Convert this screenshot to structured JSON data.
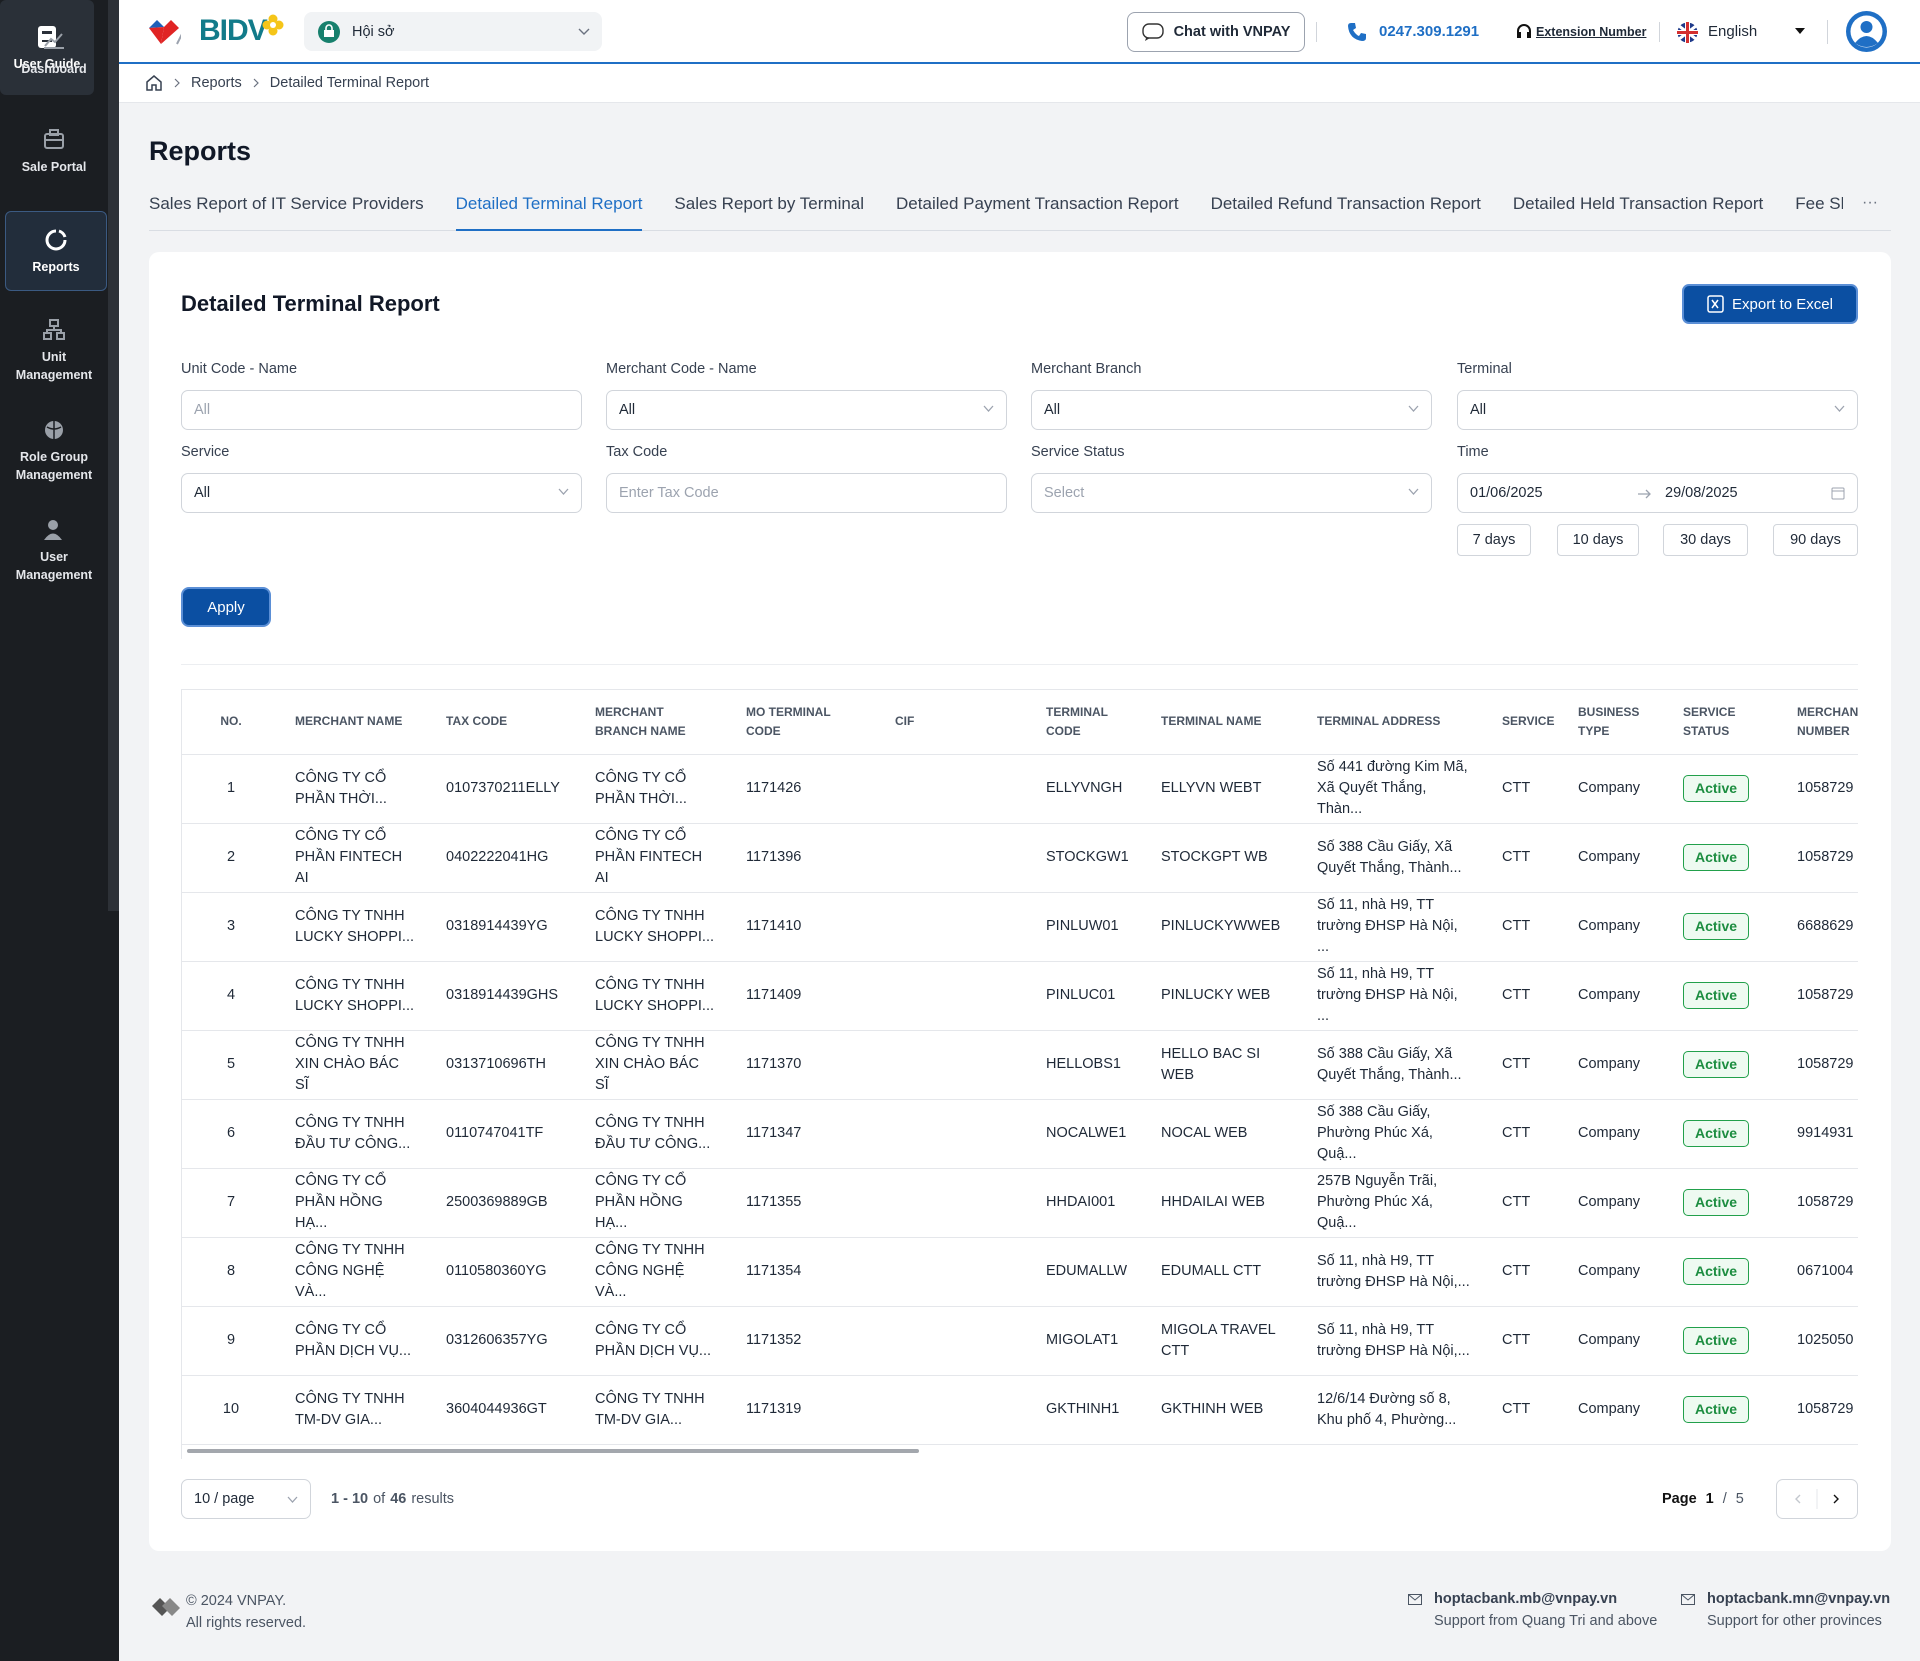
{
  "sidebar": {
    "items": [
      "Dashboard",
      "Sale Portal",
      "Reports",
      "Unit Management",
      "Role Group Management",
      "User Management"
    ],
    "active": 2,
    "user_guide": "User Guide"
  },
  "header": {
    "logo": "BIDV",
    "unit": "Hội sở",
    "chat": "Chat with VNPAY",
    "phone": "0247.309.1291",
    "extension": "Extension Number",
    "language": "English"
  },
  "breadcrumb": [
    "Reports",
    "Detailed Terminal Report"
  ],
  "page_title": "Reports",
  "tabs": {
    "items": [
      "Sales Report of IT Service Providers",
      "Detailed Terminal Report",
      "Sales Report by Terminal",
      "Detailed Payment Transaction Report",
      "Detailed Refund Transaction Report",
      "Detailed Held Transaction Report",
      "Fee Sha"
    ],
    "active": 1,
    "more": "···"
  },
  "card": {
    "title": "Detailed Terminal Report",
    "export": "Export to Excel",
    "filters": [
      {
        "label": "Unit Code - Name",
        "placeholder": "All",
        "select": false
      },
      {
        "label": "Merchant Code - Name",
        "value": "All",
        "select": true
      },
      {
        "label": "Merchant Branch",
        "value": "All",
        "select": true
      },
      {
        "label": "Terminal",
        "value": "All",
        "select": true
      },
      {
        "label": "Service",
        "value": "All",
        "select": true
      },
      {
        "label": "Tax Code",
        "placeholder": "Enter Tax Code",
        "select": false
      },
      {
        "label": "Service Status",
        "placeholder": "Select",
        "select": true
      }
    ],
    "time": {
      "label": "Time",
      "from": "01/06/2025",
      "to": "29/08/2025"
    },
    "quick_ranges": [
      "7 days",
      "10 days",
      "30 days",
      "90 days"
    ],
    "apply": "Apply"
  },
  "table": {
    "columns": [
      "NO.",
      "MERCHANT NAME",
      "TAX CODE",
      "MERCHANT BRANCH NAME",
      "MO TERMINAL CODE",
      "CIF",
      "TERMINAL CODE",
      "TERMINAL NAME",
      "TERMINAL ADDRESS",
      "SERVICE",
      "BUSINESS TYPE",
      "SERVICE STATUS",
      "MERCHAN NUMBER"
    ],
    "status_column": 11,
    "rows": [
      [
        "1",
        "CÔNG TY CỔ PHẦN THỜI...",
        "0107370211ELLY",
        "CÔNG TY CỔ PHẦN THỜI...",
        "1171426",
        null,
        "ELLYVNGH",
        "ELLYVN WEBT",
        "Số 441 đường Kim Mã, Xã Quyết Thắng, Thàn...",
        "CTT",
        "Company",
        "Active",
        "1058729"
      ],
      [
        "2",
        "CÔNG TY CỔ PHẦN FINTECH AI",
        "0402222041HG",
        "CÔNG TY CỔ PHẦN FINTECH AI",
        "1171396",
        null,
        "STOCKGW1",
        "STOCKGPT WB",
        "Số 388 Cầu Giấy, Xã Quyết Thắng, Thành...",
        "CTT",
        "Company",
        "Active",
        "1058729"
      ],
      [
        "3",
        "CÔNG TY TNHH LUCKY SHOPPI...",
        "0318914439YG",
        "CÔNG TY TNHH LUCKY SHOPPI...",
        "1171410",
        null,
        "PINLUW01",
        "PINLUCKYWWEB",
        "Số 11, nhà H9, TT trường ĐHSP Hà Nội, ...",
        "CTT",
        "Company",
        "Active",
        "6688629"
      ],
      [
        "4",
        "CÔNG TY TNHH LUCKY SHOPPI...",
        "0318914439GHS",
        "CÔNG TY TNHH LUCKY SHOPPI...",
        "1171409",
        null,
        "PINLUC01",
        "PINLUCKY WEB",
        "Số 11, nhà H9, TT trường ĐHSP Hà Nội, ...",
        "CTT",
        "Company",
        "Active",
        "1058729"
      ],
      [
        "5",
        "CÔNG TY TNHH XIN CHÀO BÁC SĨ",
        "0313710696TH",
        "CÔNG TY TNHH XIN CHÀO BÁC SĨ",
        "1171370",
        null,
        "HELLOBS1",
        "HELLO BAC SI WEB",
        "Số 388 Cầu Giấy, Xã Quyết Thắng, Thành...",
        "CTT",
        "Company",
        "Active",
        "1058729"
      ],
      [
        "6",
        "CÔNG TY TNHH ĐẦU TƯ CÔNG...",
        "0110747041TF",
        "CÔNG TY TNHH ĐẦU TƯ CÔNG...",
        "1171347",
        null,
        "NOCALWE1",
        "NOCAL WEB",
        "Số 388 Cầu Giấy, Phường Phúc Xá, Quậ...",
        "CTT",
        "Company",
        "Active",
        "9914931"
      ],
      [
        "7",
        "CÔNG TY CỔ PHẦN HỒNG HẠ...",
        "2500369889GB",
        "CÔNG TY CỔ PHẦN HỒNG HẠ...",
        "1171355",
        null,
        "HHDAI001",
        "HHDAILAI WEB",
        "257B Nguyễn Trãi, Phường Phúc Xá, Quậ...",
        "CTT",
        "Company",
        "Active",
        "1058729"
      ],
      [
        "8",
        "CÔNG TY TNHH CÔNG NGHỆ VÀ...",
        "0110580360YG",
        "CÔNG TY TNHH CÔNG NGHỆ VÀ...",
        "1171354",
        null,
        "EDUMALLW",
        "EDUMALL CTT",
        "Số 11, nhà H9, TT trường ĐHSP Hà Nội,...",
        "CTT",
        "Company",
        "Active",
        "0671004"
      ],
      [
        "9",
        "CÔNG TY CỔ PHẦN DỊCH VỤ...",
        "0312606357YG",
        "CÔNG TY CỔ PHẦN DỊCH VỤ...",
        "1171352",
        null,
        "MIGOLAT1",
        "MIGOLA TRAVEL CTT",
        "Số 11, nhà H9, TT trường ĐHSP Hà Nội,...",
        "CTT",
        "Company",
        "Active",
        "1025050"
      ],
      [
        "10",
        "CÔNG TY TNHH TM-DV GIA...",
        "3604044936GT",
        "CÔNG TY TNHH TM-DV GIA...",
        "1171319",
        null,
        "GKTHINH1",
        "GKTHINH WEB",
        "12/6/14 Đường số 8, Khu phố 4, Phường...",
        "CTT",
        "Company",
        "Active",
        "1058729"
      ]
    ]
  },
  "pagination": {
    "page_size": "10 / page",
    "range": "1 - 10",
    "of": "of",
    "total": "46",
    "results": "results",
    "page_label": "Page",
    "page": "1",
    "separator": "/",
    "total_pages": "5"
  },
  "footer": {
    "copyright": "© 2024 VNPAY.",
    "rights": "All rights reserved.",
    "contacts": [
      {
        "email": "hoptacbank.mb@vnpay.vn",
        "note": "Support from Quang Tri and above"
      },
      {
        "email": "hoptacbank.mn@vnpay.vn",
        "note": "Support for other provinces"
      }
    ]
  }
}
